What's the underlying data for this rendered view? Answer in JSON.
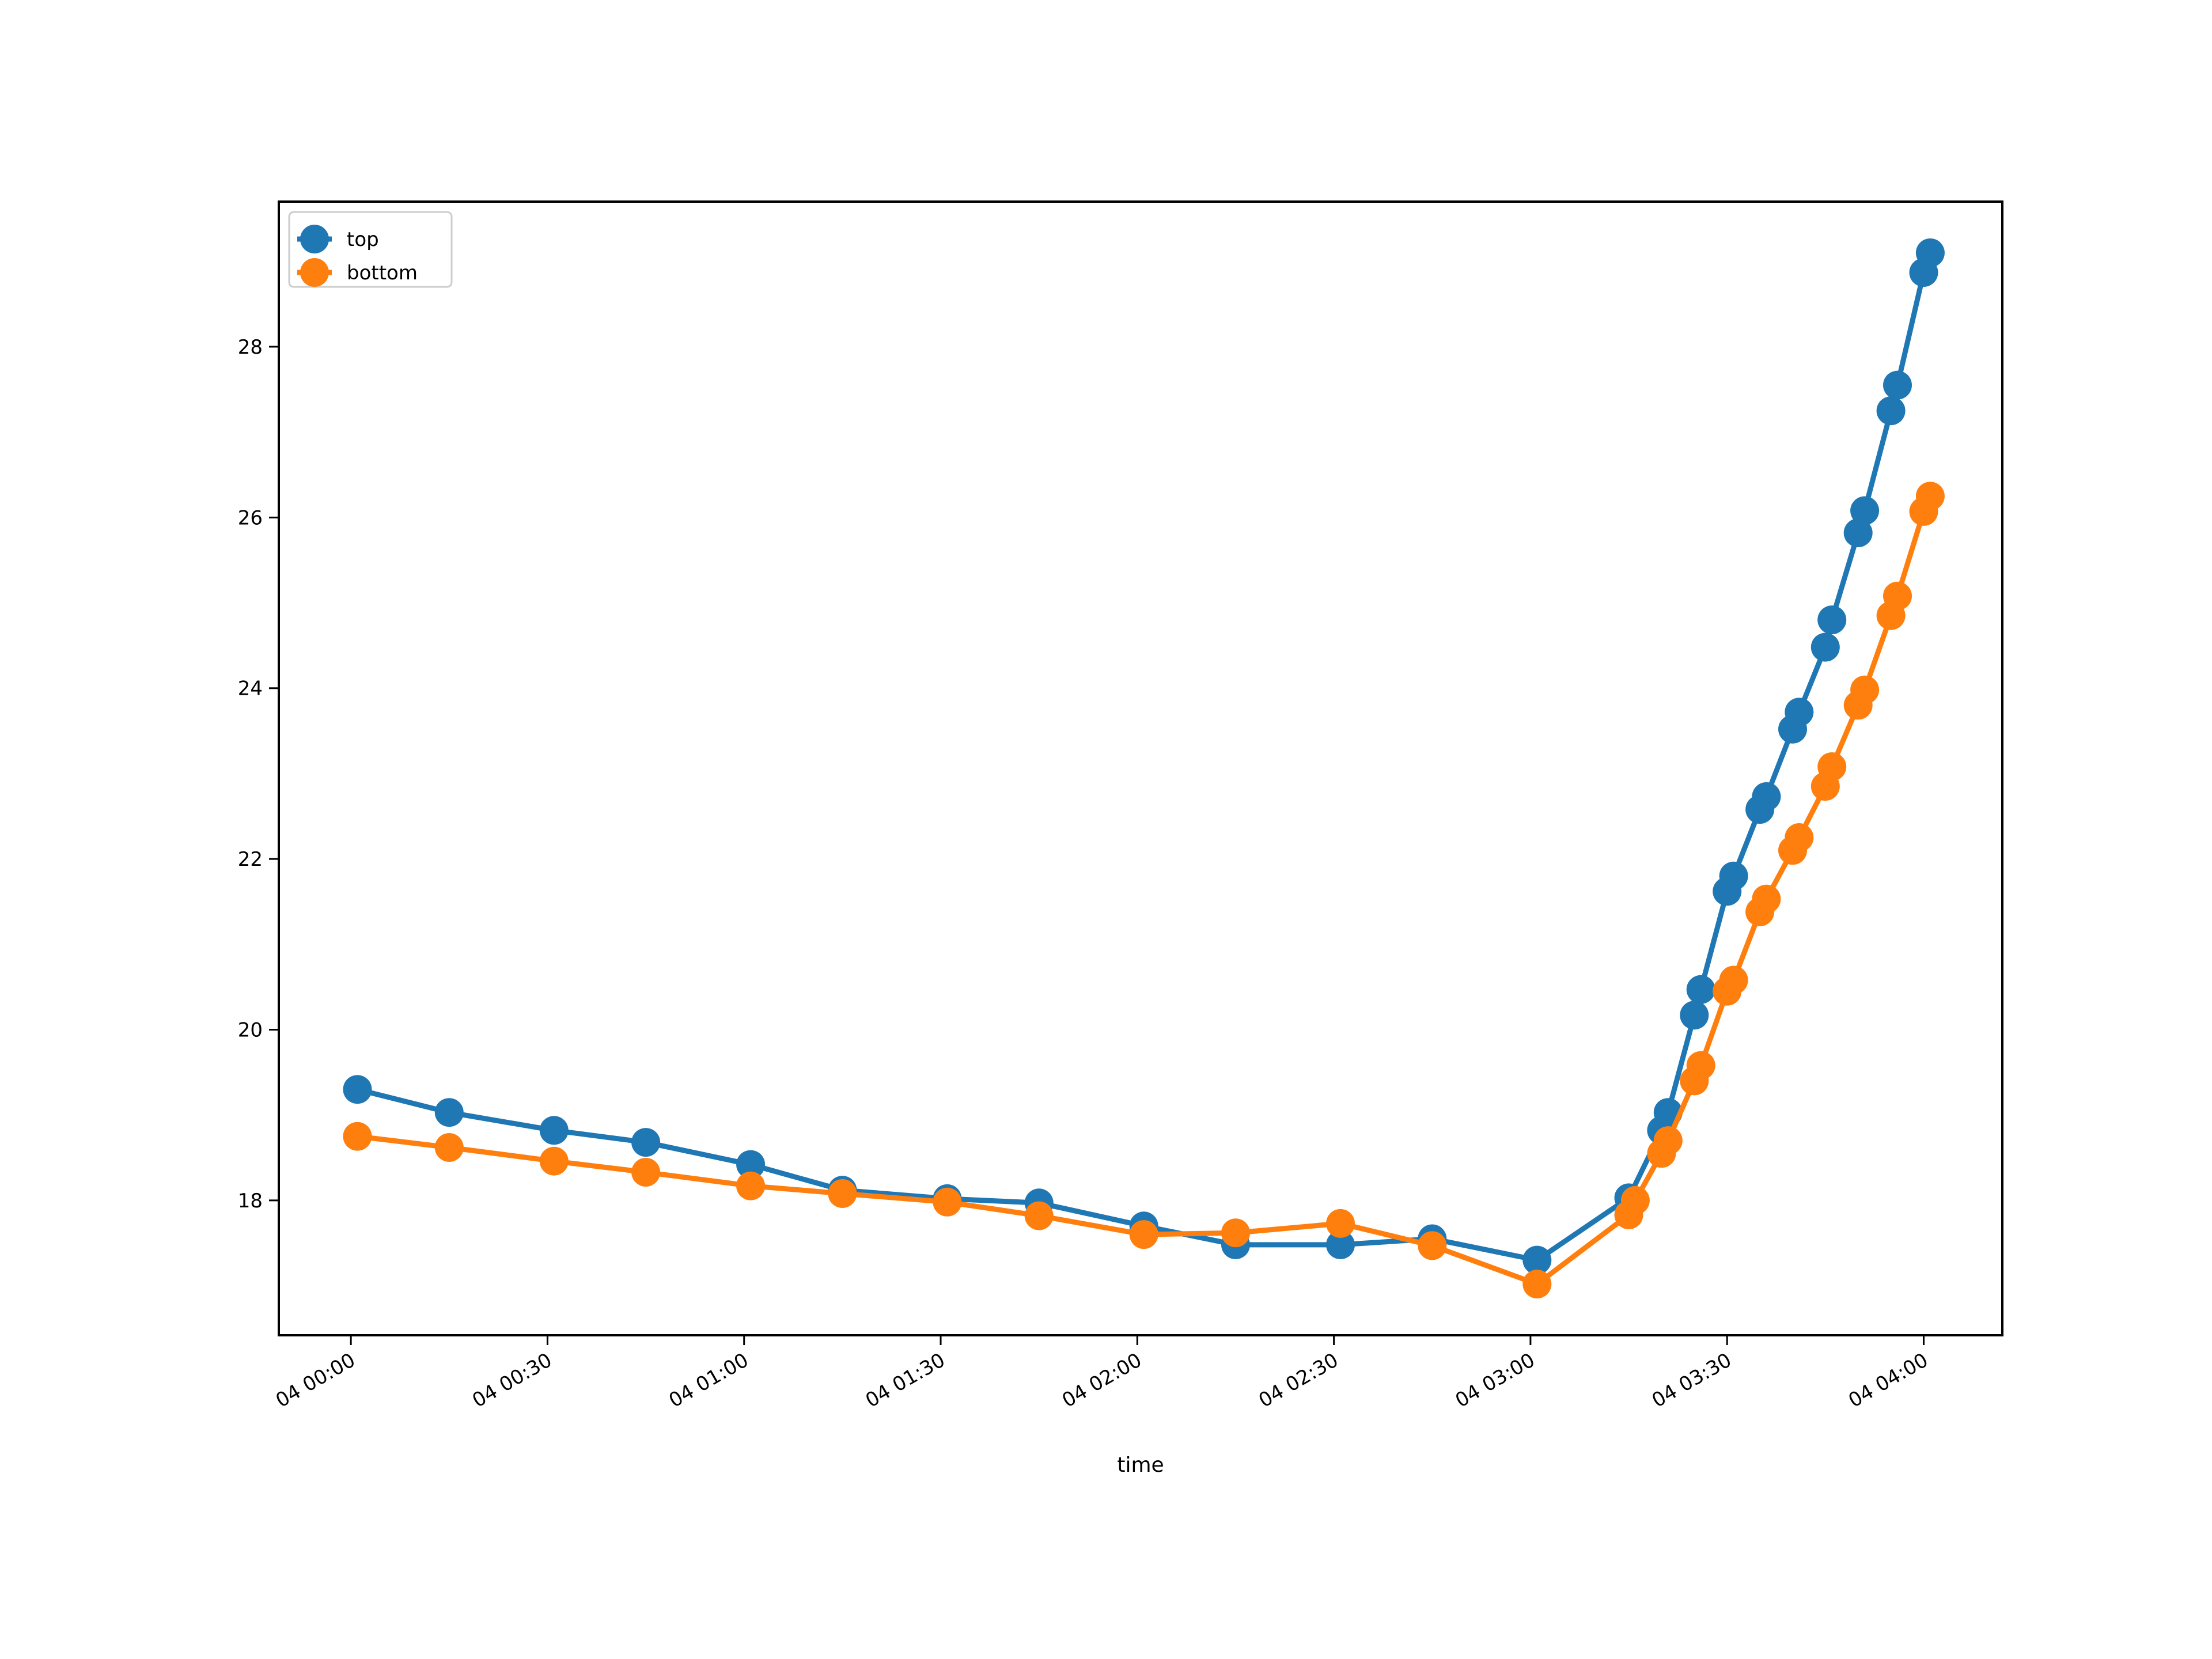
{
  "chart_data": {
    "type": "line",
    "xlabel": "time",
    "ylabel": "",
    "ylim": [
      16.42,
      29.7
    ],
    "xlim_minutes": [
      -11,
      252
    ],
    "x_ticks": [
      {
        "minutes": 0,
        "label": "04 00:00"
      },
      {
        "minutes": 30,
        "label": "04 00:30"
      },
      {
        "minutes": 60,
        "label": "04 01:00"
      },
      {
        "minutes": 90,
        "label": "04 01:30"
      },
      {
        "minutes": 120,
        "label": "04 02:00"
      },
      {
        "minutes": 150,
        "label": "04 02:30"
      },
      {
        "minutes": 180,
        "label": "04 03:00"
      },
      {
        "minutes": 210,
        "label": "04 03:30"
      },
      {
        "minutes": 240,
        "label": "04 04:00"
      }
    ],
    "y_ticks": [
      {
        "value": 18,
        "label": "18"
      },
      {
        "value": 20,
        "label": "20"
      },
      {
        "value": 22,
        "label": "22"
      },
      {
        "value": 24,
        "label": "24"
      },
      {
        "value": 26,
        "label": "26"
      },
      {
        "value": 28,
        "label": "28"
      }
    ],
    "grid": false,
    "legend": "top-left",
    "series": [
      {
        "name": "top",
        "color": "#1f77b4",
        "points": [
          {
            "x": "04 00:01",
            "y": 19.3
          },
          {
            "x": "04 00:15",
            "y": 19.03
          },
          {
            "x": "04 00:31",
            "y": 18.82
          },
          {
            "x": "04 00:45",
            "y": 18.68
          },
          {
            "x": "04 01:01",
            "y": 18.42
          },
          {
            "x": "04 01:15",
            "y": 18.12
          },
          {
            "x": "04 01:31",
            "y": 18.02
          },
          {
            "x": "04 01:45",
            "y": 17.97
          },
          {
            "x": "04 02:01",
            "y": 17.7
          },
          {
            "x": "04 02:15",
            "y": 17.48
          },
          {
            "x": "04 02:31",
            "y": 17.48
          },
          {
            "x": "04 02:45",
            "y": 17.55
          },
          {
            "x": "04 03:01",
            "y": 17.3
          },
          {
            "x": "04 03:15",
            "y": 18.03
          },
          {
            "x": "04 03:20",
            "y": 18.82
          },
          {
            "x": "04 03:21",
            "y": 19.03
          },
          {
            "x": "04 03:25",
            "y": 20.17
          },
          {
            "x": "04 03:26",
            "y": 20.47
          },
          {
            "x": "04 03:30",
            "y": 21.62
          },
          {
            "x": "04 03:31",
            "y": 21.8
          },
          {
            "x": "04 03:35",
            "y": 22.58
          },
          {
            "x": "04 03:36",
            "y": 22.73
          },
          {
            "x": "04 03:40",
            "y": 23.52
          },
          {
            "x": "04 03:41",
            "y": 23.72
          },
          {
            "x": "04 03:45",
            "y": 24.48
          },
          {
            "x": "04 03:46",
            "y": 24.8
          },
          {
            "x": "04 03:50",
            "y": 25.82
          },
          {
            "x": "04 03:51",
            "y": 26.08
          },
          {
            "x": "04 03:55",
            "y": 27.25
          },
          {
            "x": "04 03:56",
            "y": 27.55
          },
          {
            "x": "04 04:00",
            "y": 28.87
          },
          {
            "x": "04 04:01",
            "y": 29.1
          }
        ]
      },
      {
        "name": "bottom",
        "color": "#ff7f0e",
        "points": [
          {
            "x": "04 00:01",
            "y": 18.75
          },
          {
            "x": "04 00:15",
            "y": 18.62
          },
          {
            "x": "04 00:31",
            "y": 18.46
          },
          {
            "x": "04 00:45",
            "y": 18.33
          },
          {
            "x": "04 01:01",
            "y": 18.17
          },
          {
            "x": "04 01:15",
            "y": 18.08
          },
          {
            "x": "04 01:31",
            "y": 17.98
          },
          {
            "x": "04 01:45",
            "y": 17.82
          },
          {
            "x": "04 02:01",
            "y": 17.6
          },
          {
            "x": "04 02:15",
            "y": 17.62
          },
          {
            "x": "04 02:31",
            "y": 17.73
          },
          {
            "x": "04 02:45",
            "y": 17.47
          },
          {
            "x": "04 03:01",
            "y": 17.02
          },
          {
            "x": "04 03:15",
            "y": 17.83
          },
          {
            "x": "04 03:16",
            "y": 18.0
          },
          {
            "x": "04 03:20",
            "y": 18.55
          },
          {
            "x": "04 03:21",
            "y": 18.7
          },
          {
            "x": "04 03:25",
            "y": 19.4
          },
          {
            "x": "04 03:26",
            "y": 19.58
          },
          {
            "x": "04 03:30",
            "y": 20.45
          },
          {
            "x": "04 03:31",
            "y": 20.58
          },
          {
            "x": "04 03:35",
            "y": 21.38
          },
          {
            "x": "04 03:36",
            "y": 21.53
          },
          {
            "x": "04 03:40",
            "y": 22.1
          },
          {
            "x": "04 03:41",
            "y": 22.25
          },
          {
            "x": "04 03:45",
            "y": 22.85
          },
          {
            "x": "04 03:46",
            "y": 23.08
          },
          {
            "x": "04 03:50",
            "y": 23.8
          },
          {
            "x": "04 03:51",
            "y": 23.98
          },
          {
            "x": "04 03:55",
            "y": 24.85
          },
          {
            "x": "04 03:56",
            "y": 25.08
          },
          {
            "x": "04 04:00",
            "y": 26.07
          },
          {
            "x": "04 04:01",
            "y": 26.25
          }
        ]
      }
    ]
  }
}
